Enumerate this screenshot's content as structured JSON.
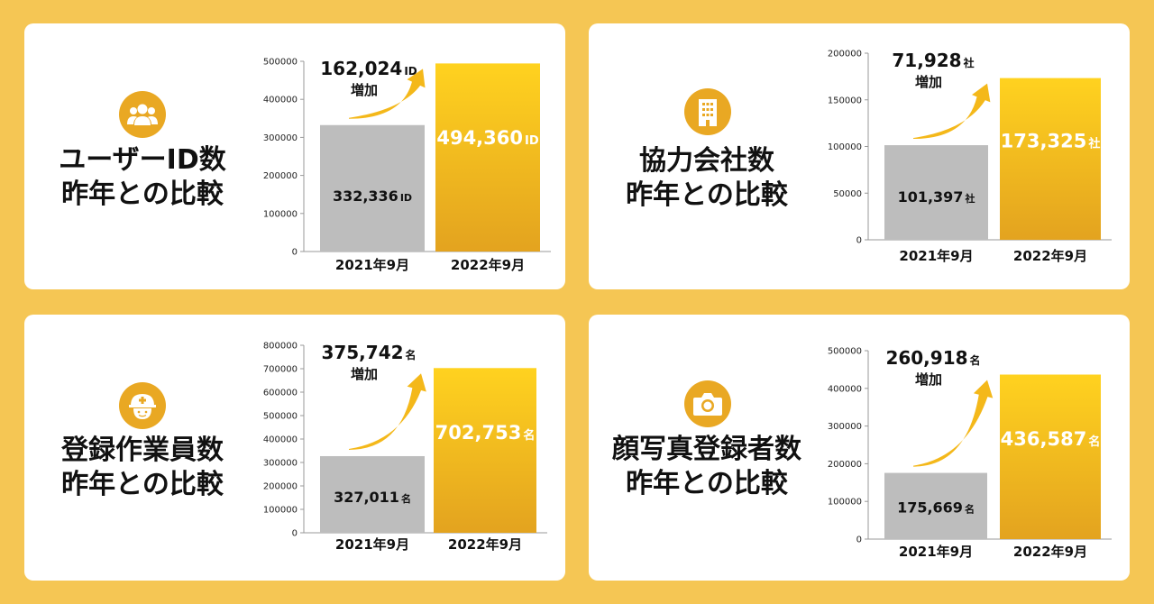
{
  "chart_data": [
    {
      "type": "bar",
      "title": "ユーザーID数",
      "subtitle": "昨年との比較",
      "icon": "users-icon",
      "categories": [
        "2021年9月",
        "2022年9月"
      ],
      "values": [
        332336,
        494360
      ],
      "value_labels": [
        "332,336",
        "494,360"
      ],
      "unit": "ID",
      "increase": {
        "value": "162,024",
        "unit": "ID",
        "label": "増加"
      },
      "ylim": [
        0,
        500000
      ],
      "yticks": [
        "0",
        "100000",
        "200000",
        "300000",
        "400000",
        "500000"
      ]
    },
    {
      "type": "bar",
      "title": "協力会社数",
      "subtitle": "昨年との比較",
      "icon": "building-icon",
      "categories": [
        "2021年9月",
        "2022年9月"
      ],
      "values": [
        101397,
        173325
      ],
      "value_labels": [
        "101,397",
        "173,325"
      ],
      "unit": "社",
      "increase": {
        "value": "71,928",
        "unit": "社",
        "label": "増加"
      },
      "ylim": [
        0,
        200000
      ],
      "yticks": [
        "0",
        "50000",
        "100000",
        "150000",
        "200000"
      ]
    },
    {
      "type": "bar",
      "title": "登録作業員数",
      "subtitle": "昨年との比較",
      "icon": "hardhat-worker-icon",
      "categories": [
        "2021年9月",
        "2022年9月"
      ],
      "values": [
        327011,
        702753
      ],
      "value_labels": [
        "327,011",
        "702,753"
      ],
      "unit": "名",
      "increase": {
        "value": "375,742",
        "unit": "名",
        "label": "増加"
      },
      "ylim": [
        0,
        800000
      ],
      "yticks": [
        "0",
        "100000",
        "200000",
        "300000",
        "400000",
        "500000",
        "600000",
        "700000",
        "800000"
      ]
    },
    {
      "type": "bar",
      "title": "顔写真登録者数",
      "subtitle": "昨年との比較",
      "icon": "camera-icon",
      "categories": [
        "2021年9月",
        "2022年9月"
      ],
      "values": [
        175669,
        436587
      ],
      "value_labels": [
        "175,669",
        "436,587"
      ],
      "unit": "名",
      "increase": {
        "value": "260,918",
        "unit": "名",
        "label": "増加"
      },
      "ylim": [
        0,
        500000
      ],
      "yticks": [
        "0",
        "100000",
        "200000",
        "300000",
        "400000",
        "500000"
      ]
    }
  ],
  "colors": {
    "background": "#F5C654",
    "panel": "#FFFFFF",
    "icon_circle": "#E9A823",
    "bar_previous": "#BDBDBD",
    "bar_current_top": "#FFD21F",
    "bar_current_bottom": "#E3A31F",
    "arrow": "#F4B81A"
  }
}
